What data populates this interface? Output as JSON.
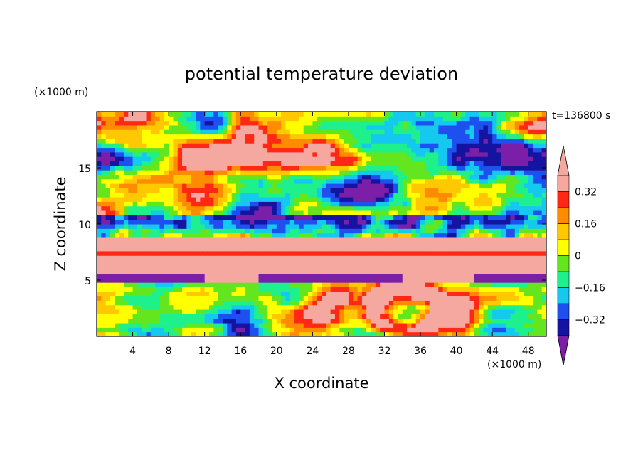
{
  "chart_data": {
    "type": "heatmap",
    "title": "potential temperature deviation",
    "time_label": "t=136800 s",
    "xlabel": "X coordinate",
    "ylabel": "Z coordinate",
    "x_unit": "(×1000 m)",
    "y_unit": "(×1000 m)",
    "xlim": [
      0,
      50
    ],
    "ylim": [
      0,
      20
    ],
    "x_ticks": [
      4,
      8,
      12,
      16,
      20,
      24,
      28,
      32,
      36,
      40,
      44,
      48
    ],
    "y_ticks": [
      5,
      10,
      15
    ],
    "colorbar": {
      "levels": [
        -0.4,
        -0.32,
        -0.24,
        -0.16,
        -0.08,
        0,
        0.08,
        0.16,
        0.24,
        0.32,
        0.4
      ],
      "labels": [
        "0.32",
        "0.16",
        "0",
        "−0.16",
        "−0.32"
      ],
      "label_values": [
        0.32,
        0.16,
        0,
        -0.16,
        -0.32
      ],
      "colors": [
        "#7b1fa8",
        "#1414a0",
        "#1e50f0",
        "#14c8f0",
        "#1ef08c",
        "#64e61e",
        "#ffff00",
        "#ffc800",
        "#ff8c00",
        "#ff2814",
        "#f5a8a0"
      ],
      "extend": "both"
    }
  }
}
